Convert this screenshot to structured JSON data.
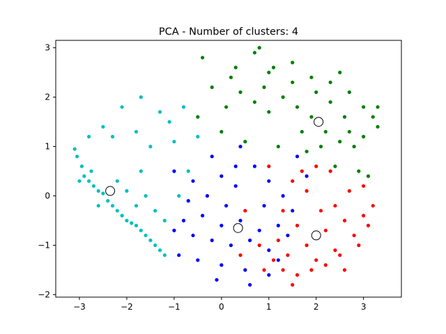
{
  "chart_data": {
    "type": "scatter",
    "title": "PCA - Number of clusters: 4",
    "xlabel": "",
    "ylabel": "",
    "xlim": [
      -3.5,
      3.8
    ],
    "ylim": [
      -2.05,
      3.15
    ],
    "xticks": [
      -3,
      -2,
      -1,
      0,
      1,
      2,
      3
    ],
    "yticks": [
      -2,
      -1,
      0,
      1,
      2,
      3
    ],
    "grid": false,
    "legend": "none",
    "series": [
      {
        "color": "#00bfbf",
        "centroid": [
          -2.35,
          0.1
        ],
        "points": [
          [
            -3.1,
            0.95
          ],
          [
            -3.05,
            0.8
          ],
          [
            -2.95,
            0.6
          ],
          [
            -2.9,
            0.4
          ],
          [
            -2.8,
            0.3
          ],
          [
            -2.75,
            0.5
          ],
          [
            -2.7,
            0.2
          ],
          [
            -2.6,
            0.1
          ],
          [
            -2.5,
            0.05
          ],
          [
            -2.4,
            -0.1
          ],
          [
            -2.3,
            -0.2
          ],
          [
            -2.2,
            -0.3
          ],
          [
            -2.1,
            -0.4
          ],
          [
            -2.0,
            -0.5
          ],
          [
            -1.9,
            -0.55
          ],
          [
            -1.8,
            -0.6
          ],
          [
            -1.7,
            -0.7
          ],
          [
            -1.6,
            -0.8
          ],
          [
            -1.5,
            -0.9
          ],
          [
            -1.4,
            -1.0
          ],
          [
            -1.3,
            -1.1
          ],
          [
            -1.2,
            -1.2
          ],
          [
            -1.8,
            -0.2
          ],
          [
            -1.6,
            0.0
          ],
          [
            -1.4,
            -0.3
          ],
          [
            -1.2,
            -0.5
          ],
          [
            -1.0,
            -0.7
          ],
          [
            -2.2,
            0.3
          ],
          [
            -2.0,
            0.1
          ],
          [
            -1.7,
            0.5
          ],
          [
            -1.5,
            1.0
          ],
          [
            -1.8,
            1.3
          ],
          [
            -2.3,
            1.2
          ],
          [
            -2.5,
            1.4
          ],
          [
            -2.8,
            1.2
          ],
          [
            -1.1,
            1.5
          ],
          [
            -0.8,
            1.8
          ],
          [
            -0.5,
            1.2
          ],
          [
            -0.7,
            0.5
          ],
          [
            -0.9,
            0.0
          ],
          [
            -2.1,
            1.8
          ],
          [
            -1.7,
            2.0
          ],
          [
            -1.3,
            1.7
          ],
          [
            -1.0,
            1.1
          ],
          [
            -2.6,
            -0.2
          ],
          [
            -3.0,
            0.3
          ]
        ]
      },
      {
        "color": "#008000",
        "centroid": [
          2.05,
          1.5
        ],
        "points": [
          [
            -0.4,
            2.8
          ],
          [
            0.3,
            2.6
          ],
          [
            0.7,
            2.9
          ],
          [
            0.8,
            3.0
          ],
          [
            1.0,
            2.5
          ],
          [
            1.5,
            2.7
          ],
          [
            1.9,
            2.4
          ],
          [
            2.3,
            2.3
          ],
          [
            2.7,
            2.1
          ],
          [
            3.0,
            1.8
          ],
          [
            3.2,
            1.6
          ],
          [
            3.3,
            1.4
          ],
          [
            3.0,
            1.2
          ],
          [
            2.8,
            1.0
          ],
          [
            2.5,
            1.1
          ],
          [
            2.2,
            1.3
          ],
          [
            1.9,
            1.6
          ],
          [
            1.6,
            1.8
          ],
          [
            1.3,
            2.0
          ],
          [
            1.0,
            1.7
          ],
          [
            0.7,
            1.9
          ],
          [
            0.4,
            2.1
          ],
          [
            0.1,
            1.8
          ],
          [
            -0.2,
            2.2
          ],
          [
            -0.5,
            1.6
          ],
          [
            0.0,
            1.3
          ],
          [
            0.5,
            1.1
          ],
          [
            1.2,
            1.0
          ],
          [
            1.8,
            0.9
          ],
          [
            2.4,
            0.6
          ],
          [
            2.9,
            0.5
          ],
          [
            3.1,
            0.4
          ],
          [
            2.6,
            1.6
          ],
          [
            2.3,
            1.9
          ],
          [
            2.0,
            2.1
          ],
          [
            1.5,
            2.3
          ],
          [
            0.9,
            2.2
          ],
          [
            1.7,
            1.3
          ],
          [
            2.1,
            1.0
          ],
          [
            2.7,
            1.3
          ],
          [
            3.3,
            1.8
          ],
          [
            0.2,
            2.4
          ],
          [
            1.1,
            2.6
          ],
          [
            2.5,
            2.5
          ]
        ]
      },
      {
        "color": "#0000ff",
        "centroid": [
          0.35,
          -0.65
        ],
        "points": [
          [
            -1.0,
            -0.7
          ],
          [
            -0.8,
            -0.5
          ],
          [
            -0.6,
            -0.8
          ],
          [
            -0.4,
            -0.4
          ],
          [
            -0.2,
            -0.9
          ],
          [
            0.0,
            -0.6
          ],
          [
            0.2,
            -1.0
          ],
          [
            0.4,
            -0.5
          ],
          [
            0.6,
            -0.9
          ],
          [
            0.8,
            -0.7
          ],
          [
            1.0,
            -1.1
          ],
          [
            1.2,
            -0.6
          ],
          [
            1.4,
            -0.8
          ],
          [
            -0.9,
            -1.2
          ],
          [
            -0.5,
            -1.3
          ],
          [
            0.0,
            -1.4
          ],
          [
            0.5,
            -1.5
          ],
          [
            1.0,
            -1.6
          ],
          [
            -0.3,
            0.0
          ],
          [
            0.0,
            0.4
          ],
          [
            0.3,
            0.2
          ],
          [
            0.7,
            0.6
          ],
          [
            1.0,
            0.3
          ],
          [
            1.3,
            0.0
          ],
          [
            1.6,
            0.8
          ],
          [
            1.8,
            0.4
          ],
          [
            -0.6,
            0.3
          ],
          [
            -1.0,
            0.5
          ],
          [
            -0.2,
            0.8
          ],
          [
            0.4,
            1.0
          ],
          [
            0.9,
            -0.2
          ],
          [
            0.1,
            -0.2
          ],
          [
            -0.7,
            -0.1
          ],
          [
            1.5,
            -0.3
          ],
          [
            0.6,
            -1.8
          ],
          [
            -0.1,
            -1.7
          ],
          [
            1.2,
            -1.3
          ],
          [
            0.3,
            0.6
          ]
        ]
      },
      {
        "color": "#ff0000",
        "centroid": [
          2.0,
          -0.8
        ],
        "points": [
          [
            1.2,
            -0.9
          ],
          [
            1.4,
            -1.2
          ],
          [
            1.6,
            -0.6
          ],
          [
            1.8,
            -1.0
          ],
          [
            2.0,
            -1.3
          ],
          [
            2.2,
            -0.7
          ],
          [
            2.4,
            -1.1
          ],
          [
            2.6,
            -0.5
          ],
          [
            2.8,
            -0.8
          ],
          [
            3.0,
            -0.4
          ],
          [
            3.2,
            -0.2
          ],
          [
            3.0,
            0.2
          ],
          [
            2.7,
            0.1
          ],
          [
            2.4,
            -0.2
          ],
          [
            2.1,
            -0.3
          ],
          [
            1.8,
            0.1
          ],
          [
            1.5,
            0.3
          ],
          [
            1.3,
            -0.3
          ],
          [
            1.1,
            -1.3
          ],
          [
            1.3,
            -1.5
          ],
          [
            1.6,
            -1.6
          ],
          [
            1.9,
            -1.5
          ],
          [
            2.2,
            -1.4
          ],
          [
            2.5,
            -1.2
          ],
          [
            0.8,
            -1.0
          ],
          [
            0.9,
            -1.5
          ],
          [
            1.7,
            0.5
          ],
          [
            2.0,
            0.6
          ],
          [
            2.3,
            0.5
          ],
          [
            2.9,
            -1.0
          ],
          [
            3.1,
            -0.6
          ],
          [
            2.6,
            -1.5
          ],
          [
            1.5,
            -1.8
          ],
          [
            0.5,
            -0.3
          ],
          [
            1.0,
            0.6
          ],
          [
            0.4,
            -1.2
          ]
        ]
      }
    ]
  }
}
